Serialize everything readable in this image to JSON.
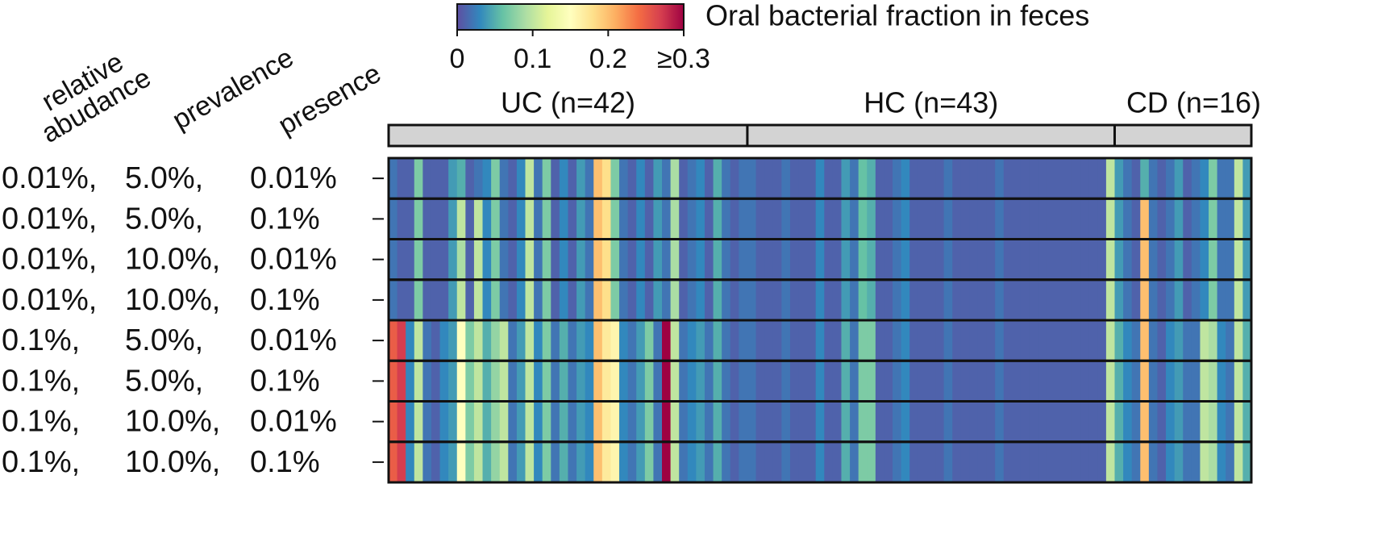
{
  "chart_data": {
    "type": "heatmap",
    "colorbar_title": "Oral bacterial fraction in feces",
    "clim": [
      0,
      0.3
    ],
    "cticks": [
      0,
      0.1,
      0.2,
      {
        "value": 0.3,
        "label": "≥0.3"
      }
    ],
    "colors": [
      "#5e4fa2",
      "#3288bd",
      "#66c2a5",
      "#abdda4",
      "#e6f598",
      "#ffffbf",
      "#fee08b",
      "#fdae61",
      "#f46d43",
      "#d53e4f",
      "#9e0142"
    ],
    "row_headers": [
      [
        "relative",
        "abudance"
      ],
      [
        "prevalence"
      ],
      [
        "presence"
      ]
    ],
    "rows": [
      [
        "0.01%,",
        "5.0%,",
        "0.01%"
      ],
      [
        "0.01%,",
        "5.0%,",
        "0.1%"
      ],
      [
        "0.01%,",
        "10.0%,",
        "0.01%"
      ],
      [
        "0.01%,",
        "10.0%,",
        "0.1%"
      ],
      [
        "0.1%,",
        "5.0%,",
        "0.01%"
      ],
      [
        "0.1%,",
        "5.0%,",
        "0.1%"
      ],
      [
        "0.1%,",
        "10.0%,",
        "0.01%"
      ],
      [
        "0.1%,",
        "10.0%,",
        "0.1%"
      ]
    ],
    "groups": [
      {
        "label": "UC (n=42)",
        "values": [
          [
            0.02,
            0.01,
            0.01,
            0.07,
            0.01,
            0.01,
            0.01,
            0.04,
            0.05,
            0.01,
            0.02,
            0.03,
            0.07,
            0.02,
            0.01,
            0.03,
            0.1,
            0.02,
            0.07,
            0.01,
            0.03,
            0.01,
            0.04,
            0.02,
            0.2,
            0.18,
            0.07,
            0.02,
            0.01,
            0.03,
            0.01,
            0.04,
            0.02,
            0.09,
            0.01,
            0.02,
            0.03,
            0.01,
            0.05,
            0.02,
            0.01,
            0.02
          ],
          [
            0.02,
            0.01,
            0.01,
            0.07,
            0.01,
            0.01,
            0.01,
            0.04,
            0.1,
            0.01,
            0.1,
            0.03,
            0.07,
            0.02,
            0.01,
            0.03,
            0.1,
            0.02,
            0.07,
            0.01,
            0.03,
            0.01,
            0.04,
            0.02,
            0.2,
            0.18,
            0.07,
            0.02,
            0.01,
            0.03,
            0.01,
            0.04,
            0.02,
            0.09,
            0.01,
            0.02,
            0.03,
            0.01,
            0.05,
            0.02,
            0.01,
            0.02
          ],
          [
            0.02,
            0.01,
            0.01,
            0.07,
            0.01,
            0.01,
            0.01,
            0.04,
            0.09,
            0.01,
            0.1,
            0.03,
            0.07,
            0.02,
            0.01,
            0.03,
            0.1,
            0.02,
            0.07,
            0.01,
            0.03,
            0.01,
            0.04,
            0.02,
            0.2,
            0.18,
            0.07,
            0.02,
            0.01,
            0.03,
            0.01,
            0.04,
            0.02,
            0.09,
            0.01,
            0.02,
            0.03,
            0.01,
            0.05,
            0.02,
            0.01,
            0.02
          ],
          [
            0.02,
            0.01,
            0.01,
            0.07,
            0.01,
            0.01,
            0.01,
            0.04,
            0.1,
            0.01,
            0.1,
            0.03,
            0.07,
            0.02,
            0.01,
            0.03,
            0.1,
            0.02,
            0.07,
            0.01,
            0.03,
            0.01,
            0.04,
            0.02,
            0.2,
            0.18,
            0.07,
            0.02,
            0.01,
            0.03,
            0.01,
            0.04,
            0.02,
            0.09,
            0.01,
            0.02,
            0.03,
            0.01,
            0.05,
            0.02,
            0.01,
            0.02
          ],
          [
            0.25,
            0.27,
            0.03,
            0.1,
            0.02,
            0.01,
            0.03,
            0.04,
            0.15,
            0.07,
            0.1,
            0.05,
            0.08,
            0.1,
            0.02,
            0.04,
            0.1,
            0.03,
            0.07,
            0.02,
            0.05,
            0.02,
            0.04,
            0.03,
            0.2,
            0.17,
            0.16,
            0.03,
            0.02,
            0.04,
            0.07,
            0.02,
            0.3,
            0.1,
            0.02,
            0.03,
            0.04,
            0.02,
            0.05,
            0.02,
            0.01,
            0.02
          ],
          [
            0.25,
            0.27,
            0.03,
            0.1,
            0.02,
            0.01,
            0.03,
            0.04,
            0.15,
            0.07,
            0.1,
            0.05,
            0.08,
            0.1,
            0.02,
            0.04,
            0.1,
            0.03,
            0.07,
            0.02,
            0.05,
            0.02,
            0.04,
            0.03,
            0.2,
            0.17,
            0.16,
            0.03,
            0.02,
            0.04,
            0.07,
            0.02,
            0.3,
            0.1,
            0.02,
            0.03,
            0.04,
            0.02,
            0.05,
            0.02,
            0.01,
            0.02
          ],
          [
            0.25,
            0.27,
            0.03,
            0.1,
            0.02,
            0.01,
            0.03,
            0.04,
            0.15,
            0.07,
            0.1,
            0.05,
            0.08,
            0.1,
            0.02,
            0.04,
            0.1,
            0.03,
            0.07,
            0.02,
            0.05,
            0.02,
            0.04,
            0.03,
            0.2,
            0.17,
            0.16,
            0.03,
            0.02,
            0.04,
            0.07,
            0.02,
            0.3,
            0.1,
            0.02,
            0.03,
            0.04,
            0.02,
            0.05,
            0.02,
            0.01,
            0.02
          ],
          [
            0.25,
            0.27,
            0.03,
            0.1,
            0.02,
            0.01,
            0.03,
            0.04,
            0.15,
            0.07,
            0.1,
            0.05,
            0.08,
            0.1,
            0.02,
            0.04,
            0.1,
            0.03,
            0.07,
            0.02,
            0.05,
            0.02,
            0.04,
            0.03,
            0.2,
            0.17,
            0.16,
            0.03,
            0.02,
            0.04,
            0.07,
            0.02,
            0.3,
            0.1,
            0.02,
            0.03,
            0.04,
            0.02,
            0.05,
            0.02,
            0.01,
            0.02
          ]
        ]
      },
      {
        "label": "HC (n=43)",
        "values": [
          [
            0.02,
            0.01,
            0.01,
            0.01,
            0.02,
            0.01,
            0.01,
            0.01,
            0.03,
            0.01,
            0.01,
            0.04,
            0.02,
            0.06,
            0.05,
            0.01,
            0.01,
            0.02,
            0.03,
            0.01,
            0.01,
            0.01,
            0.01,
            0.02,
            0.01,
            0.01,
            0.01,
            0.01,
            0.01,
            0.02,
            0.01,
            0.01,
            0.01,
            0.01,
            0.01,
            0.01,
            0.01,
            0.01,
            0.01,
            0.01,
            0.01,
            0.01,
            0.1
          ],
          [
            0.02,
            0.01,
            0.01,
            0.01,
            0.02,
            0.01,
            0.01,
            0.01,
            0.03,
            0.01,
            0.01,
            0.04,
            0.02,
            0.06,
            0.05,
            0.01,
            0.01,
            0.02,
            0.03,
            0.01,
            0.01,
            0.01,
            0.01,
            0.02,
            0.01,
            0.01,
            0.01,
            0.01,
            0.01,
            0.02,
            0.01,
            0.01,
            0.01,
            0.01,
            0.01,
            0.01,
            0.01,
            0.01,
            0.01,
            0.01,
            0.01,
            0.01,
            0.1
          ],
          [
            0.02,
            0.01,
            0.01,
            0.01,
            0.02,
            0.01,
            0.01,
            0.01,
            0.03,
            0.01,
            0.01,
            0.04,
            0.02,
            0.06,
            0.05,
            0.01,
            0.01,
            0.02,
            0.03,
            0.01,
            0.01,
            0.01,
            0.01,
            0.02,
            0.01,
            0.01,
            0.01,
            0.01,
            0.01,
            0.02,
            0.01,
            0.01,
            0.01,
            0.01,
            0.01,
            0.01,
            0.01,
            0.01,
            0.01,
            0.01,
            0.01,
            0.01,
            0.1
          ],
          [
            0.02,
            0.01,
            0.01,
            0.01,
            0.02,
            0.01,
            0.01,
            0.01,
            0.03,
            0.01,
            0.01,
            0.04,
            0.02,
            0.06,
            0.05,
            0.01,
            0.01,
            0.02,
            0.03,
            0.01,
            0.01,
            0.01,
            0.01,
            0.02,
            0.01,
            0.01,
            0.01,
            0.01,
            0.01,
            0.02,
            0.01,
            0.01,
            0.01,
            0.01,
            0.01,
            0.01,
            0.01,
            0.01,
            0.01,
            0.01,
            0.01,
            0.01,
            0.1
          ],
          [
            0.02,
            0.01,
            0.01,
            0.01,
            0.02,
            0.01,
            0.01,
            0.01,
            0.03,
            0.01,
            0.01,
            0.05,
            0.02,
            0.07,
            0.07,
            0.01,
            0.01,
            0.02,
            0.03,
            0.01,
            0.01,
            0.01,
            0.01,
            0.02,
            0.01,
            0.01,
            0.01,
            0.01,
            0.01,
            0.02,
            0.01,
            0.01,
            0.01,
            0.01,
            0.01,
            0.01,
            0.01,
            0.01,
            0.01,
            0.01,
            0.01,
            0.01,
            0.1
          ],
          [
            0.02,
            0.01,
            0.01,
            0.01,
            0.02,
            0.01,
            0.01,
            0.01,
            0.03,
            0.01,
            0.01,
            0.05,
            0.02,
            0.07,
            0.07,
            0.01,
            0.01,
            0.02,
            0.03,
            0.01,
            0.01,
            0.01,
            0.01,
            0.02,
            0.01,
            0.01,
            0.01,
            0.01,
            0.01,
            0.02,
            0.01,
            0.01,
            0.01,
            0.01,
            0.01,
            0.01,
            0.01,
            0.01,
            0.01,
            0.01,
            0.01,
            0.01,
            0.1
          ],
          [
            0.02,
            0.01,
            0.01,
            0.01,
            0.02,
            0.01,
            0.01,
            0.01,
            0.03,
            0.01,
            0.01,
            0.05,
            0.02,
            0.07,
            0.07,
            0.01,
            0.01,
            0.02,
            0.03,
            0.01,
            0.01,
            0.01,
            0.01,
            0.02,
            0.01,
            0.01,
            0.01,
            0.01,
            0.01,
            0.02,
            0.01,
            0.01,
            0.01,
            0.01,
            0.01,
            0.01,
            0.01,
            0.01,
            0.01,
            0.01,
            0.01,
            0.01,
            0.1
          ],
          [
            0.02,
            0.01,
            0.01,
            0.01,
            0.02,
            0.01,
            0.01,
            0.01,
            0.03,
            0.01,
            0.01,
            0.05,
            0.02,
            0.07,
            0.07,
            0.01,
            0.01,
            0.02,
            0.03,
            0.01,
            0.01,
            0.01,
            0.01,
            0.02,
            0.01,
            0.01,
            0.01,
            0.01,
            0.01,
            0.02,
            0.01,
            0.01,
            0.01,
            0.01,
            0.01,
            0.01,
            0.01,
            0.01,
            0.01,
            0.01,
            0.01,
            0.01,
            0.1
          ]
        ]
      },
      {
        "label": "CD (n=16)",
        "values": [
          [
            0.04,
            0.02,
            0.01,
            0.05,
            0.02,
            0.01,
            0.02,
            0.04,
            0.01,
            0.02,
            0.03,
            0.07,
            0.02,
            0.02,
            0.1,
            0.04
          ],
          [
            0.04,
            0.02,
            0.01,
            0.2,
            0.02,
            0.01,
            0.02,
            0.04,
            0.01,
            0.02,
            0.03,
            0.07,
            0.02,
            0.02,
            0.1,
            0.04
          ],
          [
            0.04,
            0.02,
            0.01,
            0.2,
            0.02,
            0.01,
            0.02,
            0.04,
            0.01,
            0.02,
            0.03,
            0.07,
            0.02,
            0.02,
            0.1,
            0.04
          ],
          [
            0.04,
            0.02,
            0.01,
            0.2,
            0.02,
            0.01,
            0.02,
            0.04,
            0.01,
            0.02,
            0.03,
            0.07,
            0.02,
            0.02,
            0.1,
            0.04
          ],
          [
            0.05,
            0.03,
            0.02,
            0.2,
            0.02,
            0.01,
            0.03,
            0.04,
            0.02,
            0.02,
            0.1,
            0.09,
            0.03,
            0.02,
            0.1,
            0.05
          ],
          [
            0.05,
            0.03,
            0.02,
            0.2,
            0.02,
            0.01,
            0.03,
            0.04,
            0.02,
            0.02,
            0.1,
            0.09,
            0.03,
            0.02,
            0.1,
            0.05
          ],
          [
            0.05,
            0.03,
            0.02,
            0.2,
            0.02,
            0.01,
            0.03,
            0.04,
            0.02,
            0.02,
            0.1,
            0.09,
            0.03,
            0.02,
            0.1,
            0.05
          ],
          [
            0.05,
            0.03,
            0.02,
            0.2,
            0.02,
            0.01,
            0.03,
            0.04,
            0.02,
            0.02,
            0.1,
            0.09,
            0.03,
            0.02,
            0.1,
            0.05
          ]
        ]
      }
    ]
  }
}
